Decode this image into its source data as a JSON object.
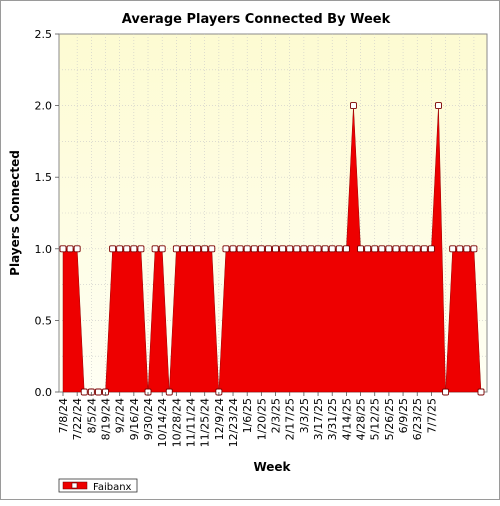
{
  "chart_data": {
    "type": "area",
    "title": "Average Players Connected By Week",
    "xlabel": "Week",
    "ylabel": "Players Connected",
    "ylim": [
      0,
      2.5
    ],
    "yticks": [
      "0.0",
      "0.5",
      "1.0",
      "1.5",
      "2.0",
      "2.5"
    ],
    "grid": true,
    "legend_position": "bottom-left",
    "x_tick_labels": [
      "7/8/24",
      "7/22/24",
      "8/5/24",
      "8/19/24",
      "9/2/24",
      "9/16/24",
      "9/30/24",
      "10/14/24",
      "10/28/24",
      "11/11/24",
      "11/25/24",
      "12/9/24",
      "12/23/24",
      "1/6/25",
      "1/20/25",
      "2/3/25",
      "2/17/25",
      "3/3/25",
      "3/17/25",
      "3/31/25",
      "4/14/25",
      "4/28/25",
      "5/12/25",
      "5/26/25",
      "6/9/25",
      "6/23/25",
      "7/7/25"
    ],
    "series": [
      {
        "name": "Faibanx",
        "color": "#ee0000",
        "values": [
          1,
          1,
          1,
          0,
          0,
          0,
          0,
          1,
          1,
          1,
          1,
          1,
          0,
          1,
          1,
          0,
          1,
          1,
          1,
          1,
          1,
          1,
          0,
          1,
          1,
          1,
          1,
          1,
          1,
          1,
          1,
          1,
          1,
          1,
          1,
          1,
          1,
          1,
          1,
          1,
          1,
          2,
          1,
          1,
          1,
          1,
          1,
          1,
          1,
          1,
          1,
          1,
          1,
          2,
          0,
          1,
          1,
          1,
          1,
          0
        ]
      }
    ]
  }
}
